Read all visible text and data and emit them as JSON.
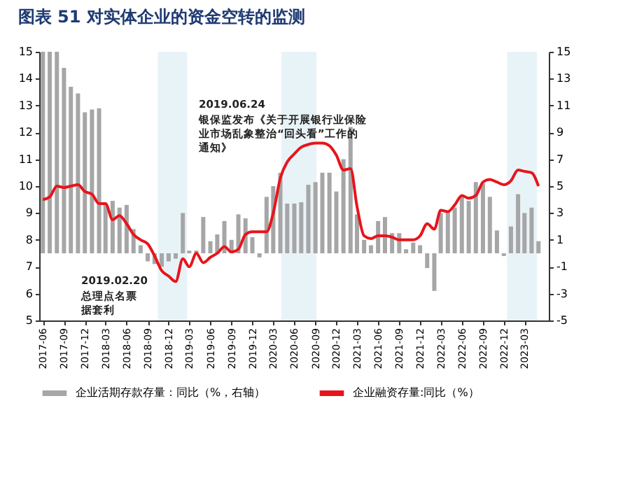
{
  "chart_data": {
    "type": "bar",
    "title": "图表 51   对实体企业的资金空转的监测",
    "x": [
      "2017-06",
      "2017-07",
      "2017-08",
      "2017-09",
      "2017-10",
      "2017-11",
      "2017-12",
      "2018-01",
      "2018-02",
      "2018-03",
      "2018-04",
      "2018-05",
      "2018-06",
      "2018-07",
      "2018-08",
      "2018-09",
      "2018-10",
      "2018-11",
      "2018-12",
      "2019-01",
      "2019-02",
      "2019-03",
      "2019-04",
      "2019-05",
      "2019-06",
      "2019-07",
      "2019-08",
      "2019-09",
      "2019-10",
      "2019-11",
      "2019-12",
      "2020-01",
      "2020-02",
      "2020-03",
      "2020-04",
      "2020-05",
      "2020-06",
      "2020-07",
      "2020-08",
      "2020-09",
      "2020-10",
      "2020-11",
      "2020-12",
      "2021-01",
      "2021-02",
      "2021-03",
      "2021-04",
      "2021-05",
      "2021-06",
      "2021-07",
      "2021-08",
      "2021-09",
      "2021-10",
      "2021-11",
      "2021-12",
      "2022-01",
      "2022-02",
      "2022-03",
      "2022-04",
      "2022-05",
      "2022-06",
      "2022-07",
      "2022-08",
      "2022-09",
      "2022-10",
      "2022-11",
      "2022-12",
      "2023-01",
      "2023-02",
      "2023-03",
      "2023-04",
      "2023-05"
    ],
    "series": [
      {
        "name": "企业活期存款存量：同比（%，右轴）",
        "axis": "y2",
        "color": "#a6a6a6",
        "values": [
          15,
          15,
          15,
          13.8,
          12.4,
          11.9,
          10.5,
          10.7,
          10.8,
          3.6,
          3.9,
          3.4,
          3.6,
          1.8,
          0.6,
          -0.6,
          -0.8,
          -1.0,
          -0.6,
          -0.4,
          3.0,
          0.2,
          0.2,
          2.7,
          0.9,
          1.4,
          2.4,
          1.0,
          2.9,
          2.6,
          1.2,
          -0.3,
          4.2,
          5.0,
          6.0,
          3.7,
          3.7,
          3.8,
          5.1,
          5.3,
          6.0,
          6.0,
          4.6,
          7.0,
          9.4,
          2.9,
          1.0,
          0.6,
          2.4,
          2.7,
          1.5,
          1.5,
          0.3,
          0.8,
          0.6,
          -1.1,
          -2.8,
          3.0,
          3.1,
          3.4,
          4.2,
          3.9,
          5.3,
          5.2,
          4.2,
          1.7,
          -0.2,
          2.0,
          4.4,
          3.0,
          3.4,
          0.9
        ]
      },
      {
        "name": "企业融资存量:同比（%）",
        "type": "line",
        "color": "#e8141c",
        "values": [
          9.5,
          9.6,
          10.0,
          9.95,
          10.0,
          10.05,
          9.8,
          9.7,
          9.35,
          9.35,
          8.75,
          8.9,
          8.6,
          8.2,
          8.0,
          7.85,
          7.4,
          6.85,
          6.65,
          6.45,
          7.3,
          7.0,
          7.5,
          7.15,
          7.35,
          7.5,
          7.75,
          7.55,
          7.65,
          8.2,
          8.3,
          8.3,
          8.3,
          9.0,
          10.3,
          10.9,
          11.2,
          11.45,
          11.55,
          11.6,
          11.6,
          11.5,
          11.15,
          10.6,
          10.65,
          9.25,
          8.15,
          8.05,
          8.15,
          8.15,
          8.1,
          8.0,
          8.0,
          8.0,
          8.15,
          8.6,
          8.4,
          9.1,
          9.05,
          9.3,
          9.65,
          9.55,
          9.65,
          10.15,
          10.25,
          10.15,
          10.05,
          10.2,
          10.6,
          10.55,
          10.5,
          10.0
        ]
      }
    ],
    "xticks": [
      "2017-06",
      "2017-09",
      "2017-12",
      "2018-03",
      "2018-06",
      "2018-09",
      "2018-12",
      "2019-03",
      "2019-06",
      "2019-09",
      "2019-12",
      "2020-03",
      "2020-06",
      "2020-09",
      "2020-12",
      "2021-03",
      "2021-06",
      "2021-09",
      "2021-12",
      "2022-03",
      "2022-06",
      "2022-09",
      "2022-12",
      "2023-03"
    ],
    "xlim": [
      "2017-05-16",
      "2023-06-15"
    ],
    "ylim": [
      5,
      15
    ],
    "yticks": [
      5,
      6,
      7,
      8,
      9,
      10,
      11,
      12,
      13,
      14,
      15
    ],
    "y2lim": [
      -5,
      15
    ],
    "y2ticks": [
      -5,
      -3,
      -1,
      1,
      3,
      5,
      7,
      9,
      11,
      13,
      15
    ],
    "bands": [
      {
        "axis": "x",
        "from": "2018-10-15",
        "to": "2019-02-20",
        "color": "#e8f3f8"
      },
      {
        "axis": "x",
        "from": "2020-04-05",
        "to": "2020-09-05",
        "color": "#e8f3f8"
      },
      {
        "axis": "x",
        "from": "2022-12-15",
        "to": "2023-04-25",
        "color": "#e8f3f8"
      }
    ],
    "annotations": [
      "2019.02.20",
      "总理点名票据套利",
      "2019.06.24",
      "银保监发布《关于开展银行业保险业市场乱象整治“回头看”工作的通知》"
    ],
    "legend": "bottom",
    "grid": false
  }
}
